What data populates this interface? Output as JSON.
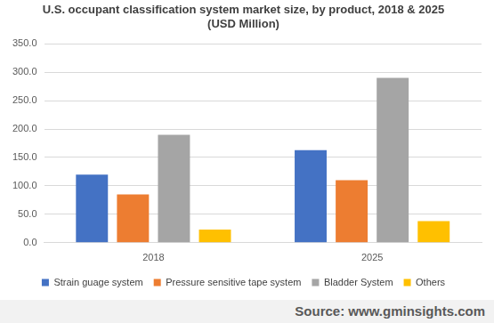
{
  "chart_data": {
    "type": "bar",
    "title": [
      "U.S. occupant classification system market size, by product, 2018 & 2025",
      "(USD Million)"
    ],
    "source": "Source: www.gminsights.com",
    "categories": [
      "2018",
      "2025"
    ],
    "series": [
      {
        "name": "Strain guage system",
        "color": "#4472c4",
        "values": [
          120,
          163
        ]
      },
      {
        "name": "Pressure sensitive tape system",
        "color": "#ed7d31",
        "values": [
          85,
          110
        ]
      },
      {
        "name": "Bladder System",
        "color": "#a5a5a5",
        "values": [
          190,
          290
        ]
      },
      {
        "name": "Others",
        "color": "#ffc000",
        "values": [
          23,
          38
        ]
      }
    ],
    "ylim": [
      0,
      350
    ],
    "yticks": [
      {
        "value": 0,
        "label": "0.0"
      },
      {
        "value": 50,
        "label": "50.0"
      },
      {
        "value": 100,
        "label": "100.0"
      },
      {
        "value": 150,
        "label": "150.0"
      },
      {
        "value": 200,
        "label": "200.0"
      },
      {
        "value": 250,
        "label": "250.0"
      },
      {
        "value": 300,
        "label": "300.0"
      },
      {
        "value": 350,
        "label": "350.0"
      }
    ],
    "grid": true,
    "legend": "bottom"
  }
}
